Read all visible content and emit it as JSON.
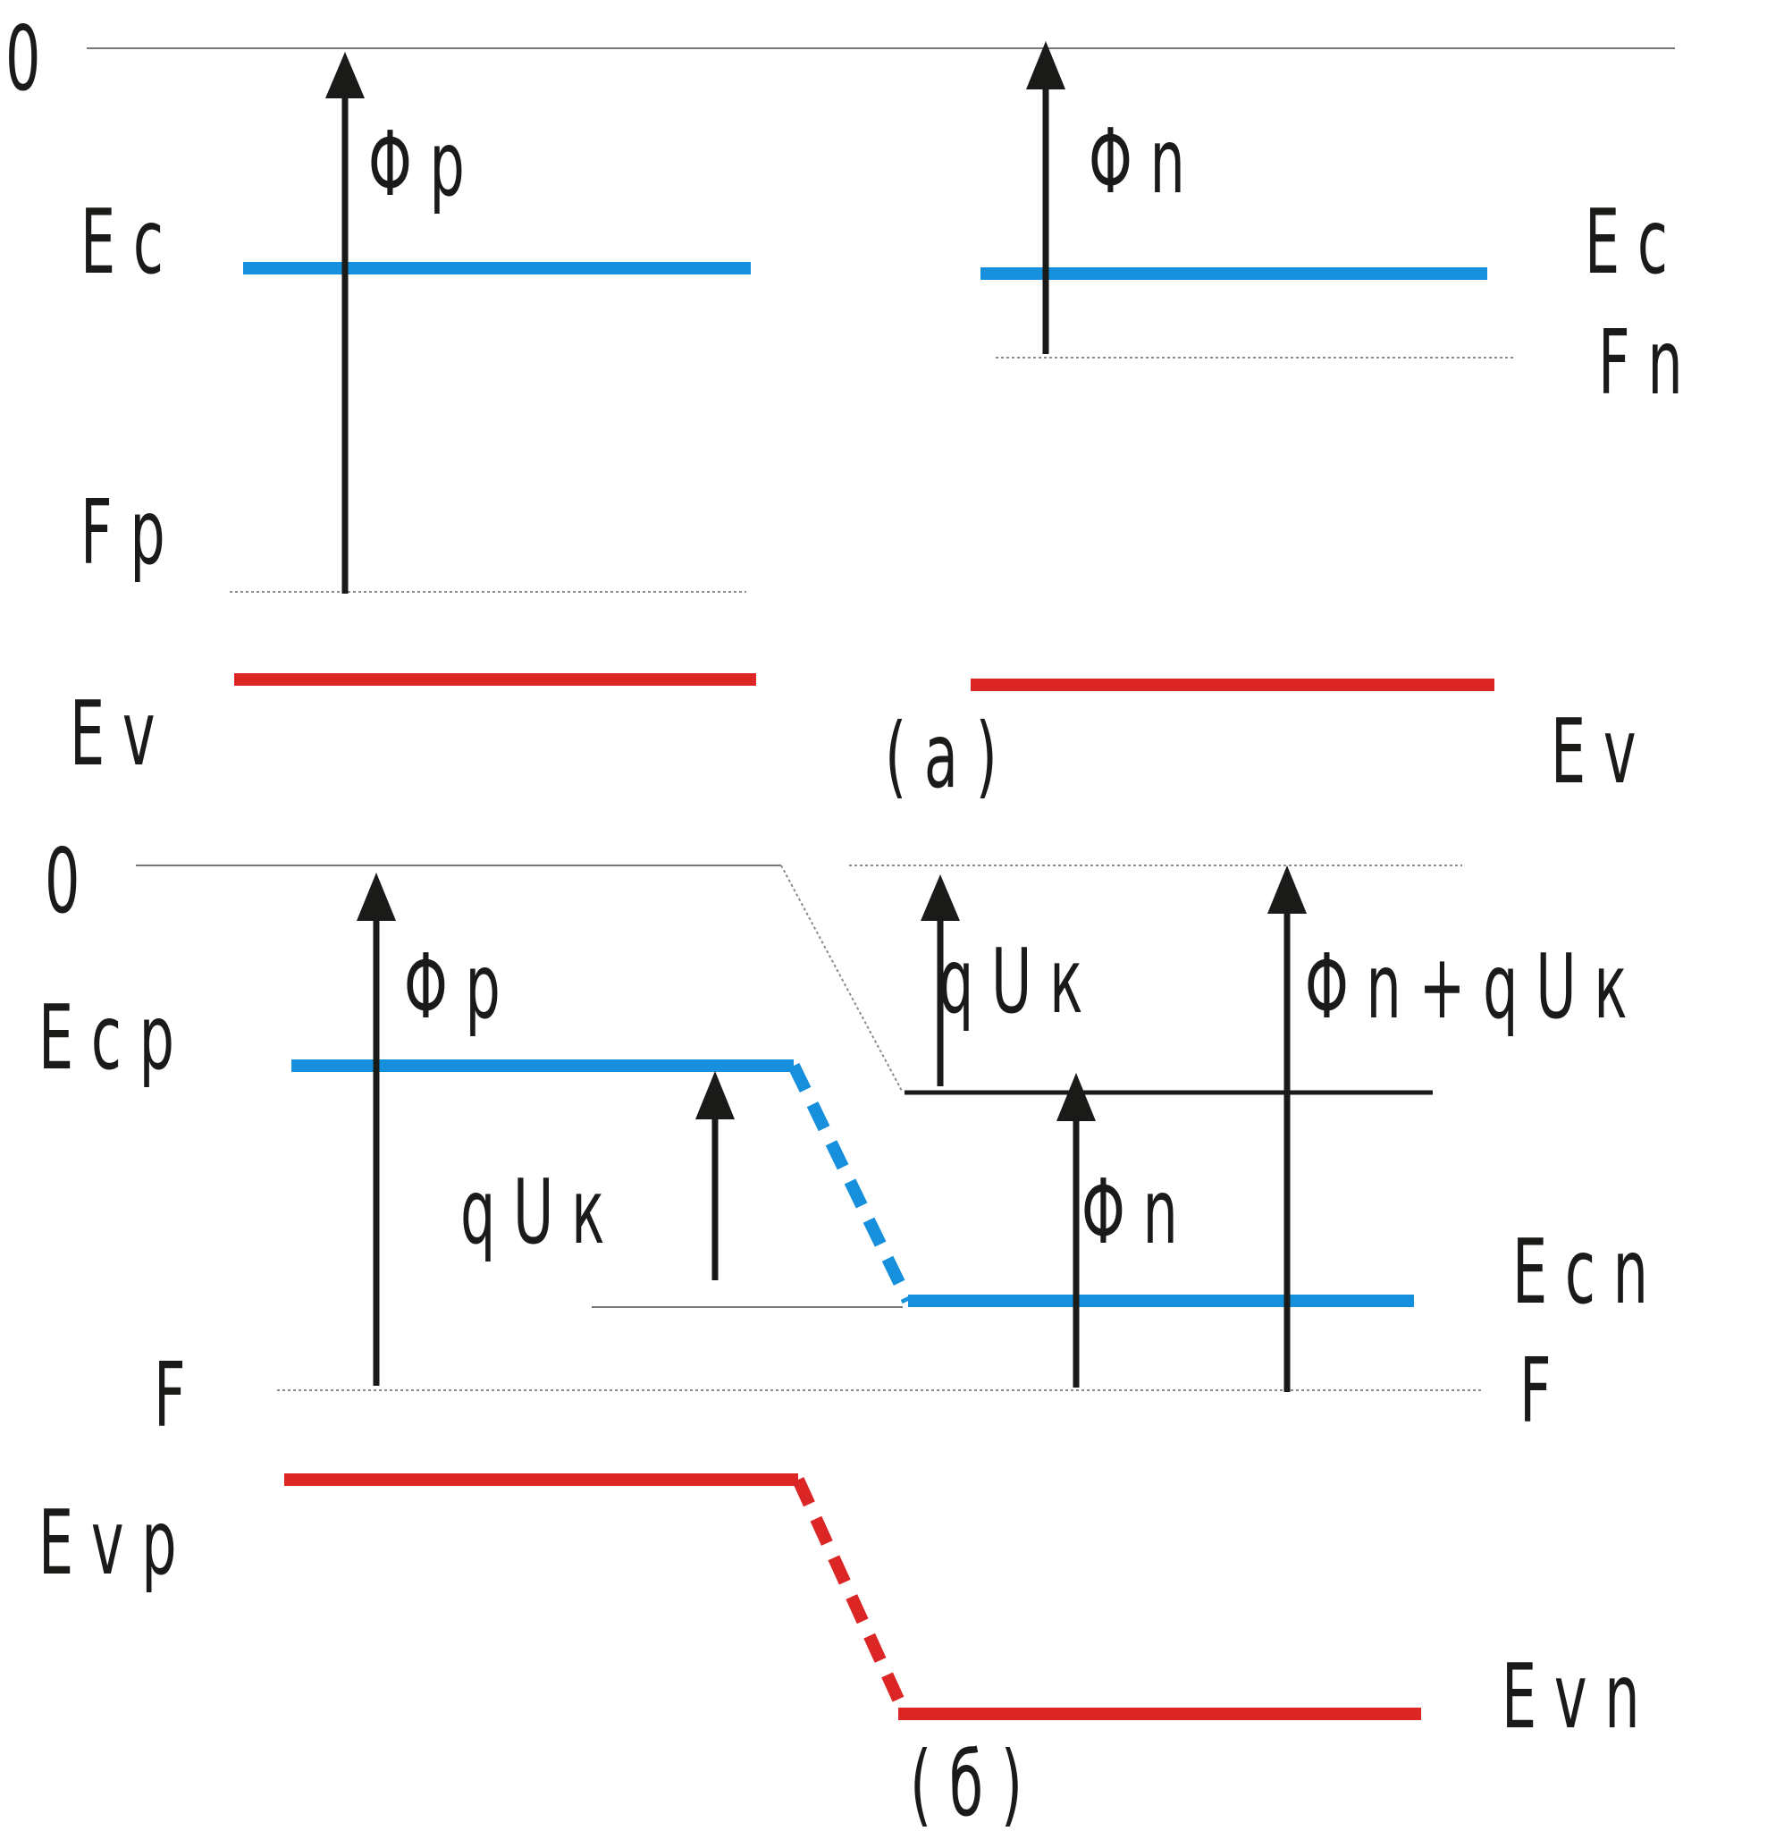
{
  "colors": {
    "conduction_band": "#1690dc",
    "valence_band": "#dc2626",
    "arrows": "#1a1a18",
    "reference_line": "#777777"
  },
  "panel_a": {
    "zero_label": "0",
    "p_side": {
      "ec_label": "E c",
      "fermi_label": "F p",
      "ev_label": "E v",
      "work_function_label": "Φ p"
    },
    "n_side": {
      "ec_label": "E c",
      "fermi_label": "F n",
      "ev_label": "E v",
      "work_function_label": "Φ n"
    },
    "caption": "( a )"
  },
  "panel_b": {
    "zero_label": "0",
    "ecp_label": "E c p",
    "evp_label": "E v p",
    "fermi_left_label": "F",
    "fermi_right_label": "F",
    "ecn_label": "E c n",
    "evn_label": "E v n",
    "phi_p_label": "Φ p",
    "quk_lower_label": "q U к",
    "quk_upper_label": "q U к",
    "phi_n_label": "Φ n",
    "phi_n_plus_quk_label": "Φ n + q U к",
    "caption": "( б )"
  }
}
